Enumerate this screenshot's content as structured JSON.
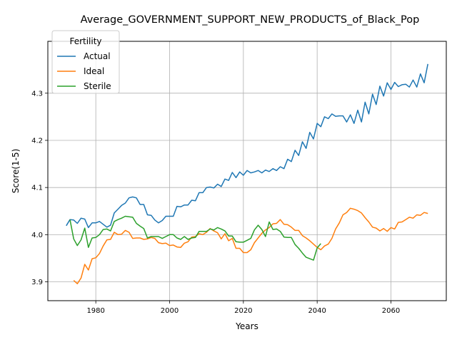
{
  "chart_data": {
    "type": "line",
    "title": "Average_GOVERNMENT_SUPPORT_NEW_PRODUCTS_of_Black_Pop",
    "xlabel": "Years",
    "ylabel": "Score(1-5)",
    "xlim": [
      1967,
      2075
    ],
    "ylim": [
      3.86,
      4.41
    ],
    "xticks": [
      1980,
      2000,
      2020,
      2040,
      2060
    ],
    "yticks": [
      3.9,
      4.0,
      4.1,
      4.2,
      4.3
    ],
    "xtick_labels": [
      "1980",
      "2000",
      "2020",
      "2040",
      "2060"
    ],
    "ytick_labels": [
      "3.9",
      "4.0",
      "4.1",
      "4.2",
      "4.3"
    ],
    "grid": true,
    "legend": {
      "title": "Fertility",
      "placement": "top-left"
    },
    "series": [
      {
        "name": "Actual",
        "color": "#1f77b4",
        "x": [
          1972,
          1973,
          1974,
          1975,
          1976,
          1977,
          1978,
          1979,
          1980,
          1981,
          1982,
          1983,
          1984,
          1985,
          1986,
          1987,
          1988,
          1989,
          1990,
          1991,
          1992,
          1993,
          1994,
          1995,
          1996,
          1997,
          1998,
          1999,
          2000,
          2001,
          2002,
          2003,
          2004,
          2005,
          2006,
          2007,
          2008,
          2009,
          2010,
          2011,
          2012,
          2013,
          2014,
          2015,
          2016,
          2017,
          2018,
          2019,
          2020,
          2021,
          2022,
          2023,
          2024,
          2025,
          2026,
          2027,
          2028,
          2029,
          2030,
          2031,
          2032,
          2033,
          2034,
          2035,
          2036,
          2037,
          2038,
          2039,
          2040,
          2041,
          2042,
          2043,
          2044,
          2045,
          2046,
          2047,
          2048,
          2049,
          2050,
          2051,
          2052,
          2053,
          2054,
          2055,
          2056,
          2057,
          2058,
          2059,
          2060,
          2061,
          2062,
          2063,
          2064,
          2065,
          2066,
          2067,
          2068,
          2069,
          2070
        ],
        "values": [
          4.019,
          4.032,
          4.031,
          4.024,
          4.035,
          4.033,
          4.015,
          4.025,
          4.025,
          4.028,
          4.022,
          4.016,
          4.02,
          4.046,
          4.054,
          4.062,
          4.067,
          4.078,
          4.08,
          4.078,
          4.064,
          4.064,
          4.042,
          4.041,
          4.031,
          4.025,
          4.03,
          4.039,
          4.039,
          4.039,
          4.06,
          4.059,
          4.063,
          4.063,
          4.073,
          4.072,
          4.089,
          4.089,
          4.1,
          4.101,
          4.099,
          4.107,
          4.102,
          4.118,
          4.115,
          4.132,
          4.121,
          4.133,
          4.126,
          4.136,
          4.131,
          4.133,
          4.136,
          4.131,
          4.137,
          4.134,
          4.14,
          4.136,
          4.144,
          4.14,
          4.16,
          4.155,
          4.179,
          4.168,
          4.197,
          4.183,
          4.217,
          4.203,
          4.236,
          4.229,
          4.25,
          4.246,
          4.256,
          4.251,
          4.252,
          4.252,
          4.239,
          4.254,
          4.236,
          4.264,
          4.239,
          4.281,
          4.256,
          4.298,
          4.276,
          4.315,
          4.294,
          4.322,
          4.308,
          4.323,
          4.314,
          4.318,
          4.319,
          4.313,
          4.328,
          4.313,
          4.341,
          4.322,
          4.362
        ]
      },
      {
        "name": "Ideal",
        "color": "#ff7f0e",
        "x": [
          1974,
          1975,
          1976,
          1977,
          1978,
          1979,
          1980,
          1981,
          1982,
          1983,
          1984,
          1985,
          1986,
          1987,
          1988,
          1989,
          1990,
          1991,
          1992,
          1993,
          1994,
          1995,
          1996,
          1997,
          1998,
          1999,
          2000,
          2001,
          2002,
          2003,
          2004,
          2005,
          2006,
          2007,
          2008,
          2009,
          2010,
          2011,
          2012,
          2013,
          2014,
          2015,
          2016,
          2017,
          2018,
          2019,
          2020,
          2021,
          2022,
          2023,
          2024,
          2025,
          2026,
          2027,
          2028,
          2029,
          2030,
          2031,
          2032,
          2033,
          2034,
          2035,
          2036,
          2037,
          2038,
          2039,
          2040,
          2041,
          2042,
          2043,
          2044,
          2045,
          2046,
          2047,
          2048,
          2049,
          2050,
          2051,
          2052,
          2053,
          2054,
          2055,
          2056,
          2057,
          2058,
          2059,
          2060,
          2061,
          2062,
          2063,
          2064,
          2065,
          2066,
          2067,
          2068,
          2069,
          2070
        ],
        "values": [
          3.903,
          3.896,
          3.908,
          3.937,
          3.925,
          3.949,
          3.951,
          3.96,
          3.976,
          3.989,
          3.99,
          4.005,
          4.0,
          4.001,
          4.009,
          4.005,
          3.992,
          3.993,
          3.993,
          3.99,
          3.991,
          3.994,
          3.992,
          3.983,
          3.981,
          3.982,
          3.977,
          3.978,
          3.974,
          3.973,
          3.982,
          3.985,
          3.995,
          3.996,
          4.002,
          4.0,
          4.005,
          4.013,
          4.008,
          4.004,
          3.991,
          4.002,
          3.987,
          3.992,
          3.971,
          3.971,
          3.962,
          3.962,
          3.968,
          3.983,
          3.993,
          4.003,
          4.01,
          4.015,
          4.023,
          4.024,
          4.032,
          4.022,
          4.021,
          4.016,
          4.009,
          4.009,
          3.998,
          3.993,
          3.987,
          3.98,
          3.973,
          3.968,
          3.976,
          3.98,
          3.992,
          4.012,
          4.025,
          4.042,
          4.047,
          4.056,
          4.054,
          4.051,
          4.046,
          4.036,
          4.027,
          4.016,
          4.014,
          4.008,
          4.013,
          4.007,
          4.015,
          4.012,
          4.026,
          4.027,
          4.032,
          4.037,
          4.035,
          4.042,
          4.041,
          4.047,
          4.045
        ]
      },
      {
        "name": "Sterile",
        "color": "#2ca02c",
        "x": [
          1973,
          1974,
          1975,
          1976,
          1977,
          1978,
          1979,
          1980,
          1981,
          1982,
          1983,
          1984,
          1985,
          1986,
          1987,
          1988,
          1989,
          1990,
          1991,
          1992,
          1993,
          1994,
          1995,
          1996,
          1997,
          1998,
          1999,
          2000,
          2001,
          2002,
          2003,
          2004,
          2005,
          2006,
          2007,
          2008,
          2009,
          2010,
          2011,
          2012,
          2013,
          2014,
          2015,
          2016,
          2017,
          2018,
          2019,
          2020,
          2021,
          2022,
          2023,
          2024,
          2025,
          2026,
          2027,
          2028,
          2029,
          2030,
          2031,
          2032,
          2033,
          2034,
          2035,
          2036,
          2037,
          2038,
          2039,
          2040,
          2041
        ],
        "values": [
          4.032,
          3.991,
          3.977,
          3.989,
          4.014,
          3.973,
          3.993,
          3.994,
          4.0,
          4.011,
          4.012,
          4.008,
          4.028,
          4.032,
          4.035,
          4.039,
          4.038,
          4.037,
          4.024,
          4.018,
          4.013,
          3.993,
          3.996,
          3.996,
          3.996,
          3.992,
          3.996,
          4.0,
          4.0,
          3.993,
          3.99,
          3.996,
          3.99,
          3.993,
          3.994,
          4.007,
          4.007,
          4.007,
          4.012,
          4.01,
          4.015,
          4.012,
          4.008,
          3.997,
          3.997,
          3.985,
          3.984,
          3.984,
          3.988,
          3.992,
          4.01,
          4.02,
          4.011,
          3.996,
          4.027,
          4.011,
          4.012,
          4.007,
          3.995,
          3.994,
          3.994,
          3.979,
          3.971,
          3.961,
          3.952,
          3.949,
          3.946,
          3.972,
          3.981
        ]
      }
    ]
  }
}
